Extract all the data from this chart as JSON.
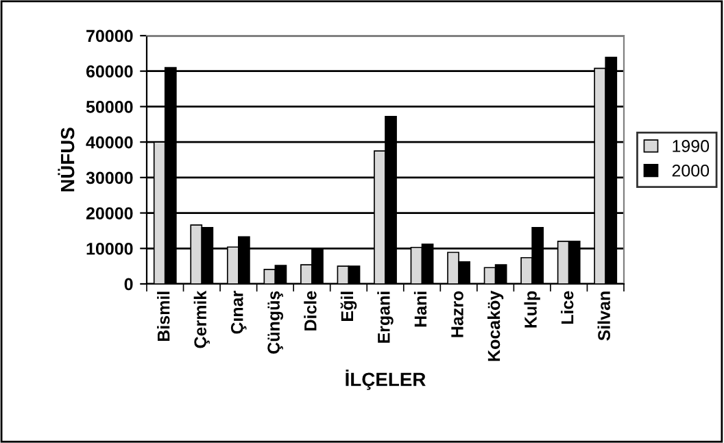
{
  "chart_data": {
    "type": "bar",
    "xlabel": "İLÇELER",
    "ylabel": "NÜFUS",
    "categories": [
      "Bismil",
      "Çermik",
      "Çınar",
      "Çüngüş",
      "Dicle",
      "Eğil",
      "Ergani",
      "Hani",
      "Hazro",
      "Kocaköy",
      "Kulp",
      "Lice",
      "Silvan"
    ],
    "series": [
      {
        "name": "1990",
        "color": "#d9d9d9",
        "values": [
          40000,
          16600,
          10400,
          4100,
          5400,
          5000,
          37500,
          10300,
          8900,
          4600,
          7400,
          12000,
          60800
        ]
      },
      {
        "name": "2000",
        "color": "#000000",
        "values": [
          61000,
          15900,
          13300,
          5200,
          10000,
          5000,
          47200,
          11200,
          6200,
          5400,
          15900,
          12000,
          63900
        ]
      }
    ],
    "ylim": [
      0,
      70000
    ],
    "yticks": [
      0,
      10000,
      20000,
      30000,
      40000,
      50000,
      60000,
      70000
    ],
    "grid": "y",
    "legend": "right"
  }
}
